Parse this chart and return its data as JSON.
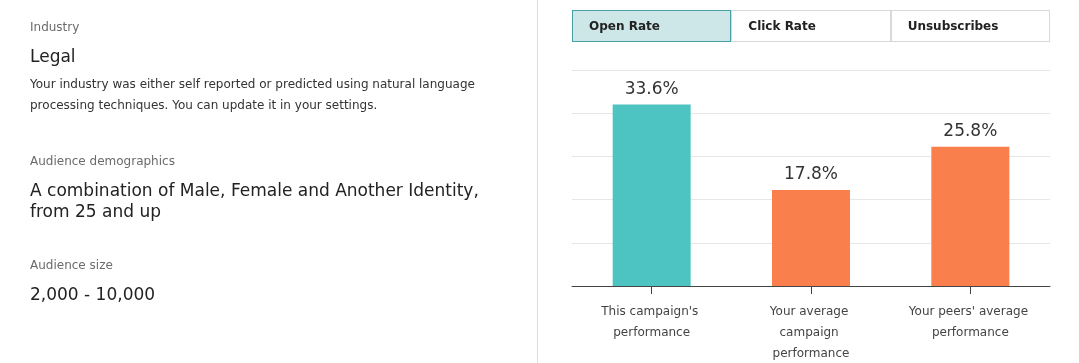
{
  "chart_data": [
    {
      "type": "other",
      "annotations": [
        "Industry",
        "Legal",
        "Your industry was either self reported or predicted using natural language processing techniques. You can update it in your settings.",
        "Audience demographics",
        "A combination of Male, Female and Another Identity, from 25 and up",
        "Audience size",
        "2,000 - 10,000"
      ]
    },
    {
      "type": "bar",
      "annotations": [
        "Open Rate",
        "Click Rate",
        "Unsubscribes"
      ],
      "categories": [
        "This campaign's performance",
        "Your average campaign performance",
        "Your peers' average performance"
      ],
      "values": [
        33.6,
        17.8,
        25.8
      ],
      "colors": [
        "#4ec4c2",
        "#f97f4c",
        "#f97f4c"
      ],
      "value_labels": [
        "33.6%",
        "17.8%",
        "25.8%"
      ],
      "ylim": [
        0,
        40
      ],
      "yticks": [
        {
          "value": 0,
          "label": null
        },
        {
          "value": 8,
          "label": null
        },
        {
          "value": 16,
          "label": null
        },
        {
          "value": 24,
          "label": null
        },
        {
          "value": 32,
          "label": null
        },
        {
          "value": 40,
          "label": null
        }
      ],
      "grid": "y",
      "tick_labels": "x"
    }
  ]
}
